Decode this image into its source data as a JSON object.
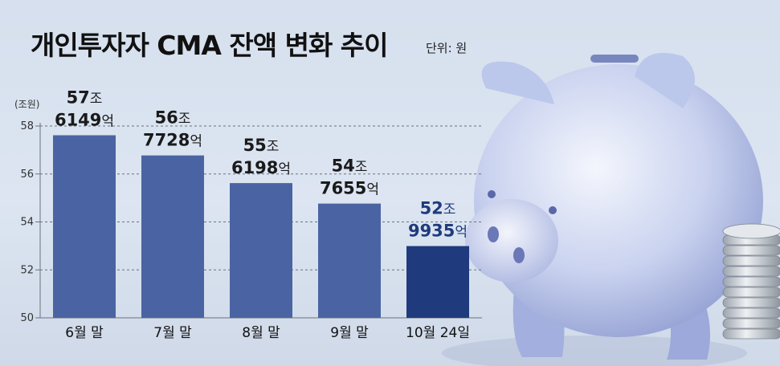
{
  "title": "개인투자자 CMA 잔액 변화 추이",
  "unit_note": "단위: 원",
  "colors": {
    "bar": "#4a64a3",
    "bar_highlight": "#1f3b7d",
    "label": "#1a1a1a",
    "label_highlight": "#1f3b7d",
    "grid": "#6b7280"
  },
  "chart_data": {
    "type": "bar",
    "categories": [
      "6월 말",
      "7월 말",
      "8월 말",
      "9월 말",
      "10월 24일"
    ],
    "values": [
      57.6149,
      56.7728,
      55.6198,
      54.7655,
      52.9935
    ],
    "value_labels": [
      {
        "line1_num": "57",
        "line1_unit": "조",
        "line2_num": "6149",
        "line2_unit": "억"
      },
      {
        "line1_num": "56",
        "line1_unit": "조",
        "line2_num": "7728",
        "line2_unit": "억"
      },
      {
        "line1_num": "55",
        "line1_unit": "조",
        "line2_num": "6198",
        "line2_unit": "억"
      },
      {
        "line1_num": "54",
        "line1_unit": "조",
        "line2_num": "7655",
        "line2_unit": "억"
      },
      {
        "line1_num": "52",
        "line1_unit": "조",
        "line2_num": "9935",
        "line2_unit": "억"
      }
    ],
    "highlight_index": 4,
    "ylabel": "(조원)",
    "ylim": [
      50,
      58
    ],
    "yticks": [
      50,
      52,
      54,
      56,
      58
    ],
    "grid": true
  }
}
